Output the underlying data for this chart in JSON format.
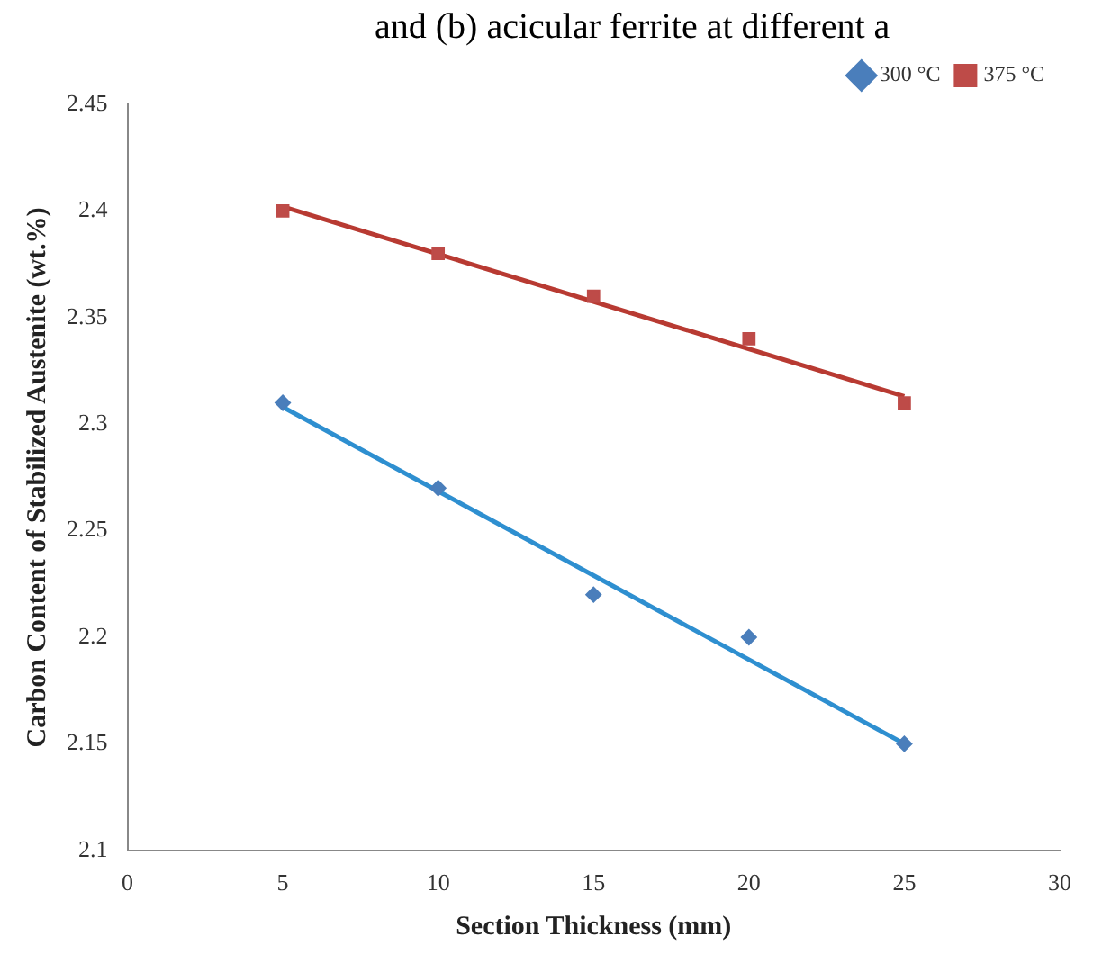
{
  "chart_data": {
    "type": "scatter",
    "xlabel": "Section Thickness (mm)",
    "ylabel": "Carbon Content of Stabilized Austenite (wt.%)",
    "annotations": [
      "and (b) acicular ferrite at different a"
    ],
    "xlim": [
      0,
      30
    ],
    "xticks": [
      0,
      5,
      10,
      15,
      20,
      25,
      30
    ],
    "ylim": [
      2.1,
      2.45
    ],
    "yticks": [
      2.1,
      2.15,
      2.2,
      2.25,
      2.3,
      2.35,
      2.4,
      2.45
    ],
    "grid": false,
    "legend": "top right",
    "series": [
      {
        "name": "300 °C",
        "color": "#4a7ebb",
        "marker": "diamond",
        "x": [
          5,
          10,
          15,
          20,
          25
        ],
        "values": [
          2.31,
          2.27,
          2.22,
          2.2,
          2.15
        ]
      },
      {
        "name": "375 °C",
        "color": "#be4b48",
        "marker": "square",
        "x": [
          5,
          10,
          15,
          20,
          25
        ],
        "values": [
          2.4,
          2.38,
          2.36,
          2.34,
          2.31
        ]
      },
      {
        "type": "line",
        "color": "#2e8fd0",
        "marker": "none",
        "x": [
          5,
          25
        ],
        "values": [
          2.308,
          2.15
        ]
      },
      {
        "type": "line",
        "color": "#b83a32",
        "marker": "none",
        "x": [
          5,
          25
        ],
        "values": [
          2.402,
          2.313
        ]
      }
    ]
  }
}
